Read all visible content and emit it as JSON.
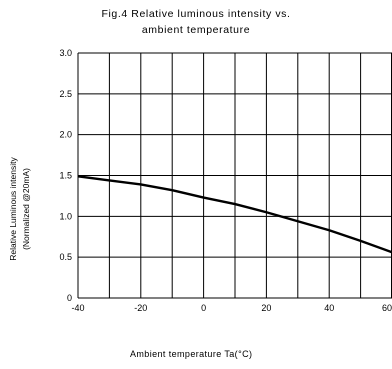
{
  "chart_data": {
    "type": "line",
    "title_line1": "Fig.4 Relative luminous intensity vs.",
    "title_line2": "ambient temperature",
    "ylabel_line1": "Relative Luminous intensity",
    "ylabel_line2": "(Normalized @20mA)",
    "xlabel": "Ambient temperature Ta(°C)",
    "xlim": [
      -40,
      60
    ],
    "ylim": [
      0,
      3.0
    ],
    "x_ticks": [
      -40,
      -20,
      0,
      20,
      40,
      60
    ],
    "y_ticks": [
      "0",
      "0.5",
      "1.0",
      "1.5",
      "2.0",
      "2.5",
      "3.0"
    ],
    "x_grid": [
      -40,
      -30,
      -20,
      -10,
      0,
      10,
      20,
      30,
      40,
      50,
      60
    ],
    "y_grid": [
      0,
      0.5,
      1.0,
      1.5,
      2.0,
      2.5,
      3.0
    ],
    "grid": true,
    "series": [
      {
        "x": [
          -40,
          -30,
          -20,
          -10,
          0,
          10,
          20,
          30,
          40,
          50,
          60
        ],
        "y": [
          1.49,
          1.44,
          1.39,
          1.32,
          1.23,
          1.15,
          1.05,
          0.94,
          0.83,
          0.7,
          0.56
        ]
      }
    ],
    "line_color": "#000000"
  }
}
